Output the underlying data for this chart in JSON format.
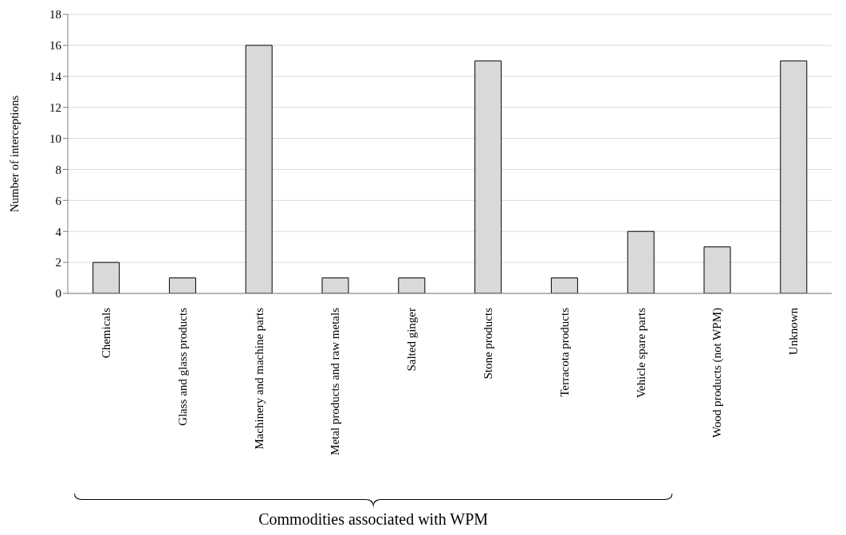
{
  "chart_data": {
    "type": "bar",
    "ylabel": "Number of interceptions",
    "categories": [
      "Chemicals",
      "Glass and glass products",
      "Machinery and machine parts",
      "Metal products and raw metals",
      "Salted ginger",
      "Stone products",
      "Terracota products",
      "Vehicle spare parts",
      "Wood products (not WPM)",
      "Unknown"
    ],
    "values": [
      2,
      1,
      16,
      1,
      1,
      15,
      1,
      4,
      3,
      15
    ],
    "color": "#d9d9d9",
    "ylim": [
      0,
      18
    ],
    "yticks": [
      0,
      2,
      4,
      6,
      8,
      10,
      12,
      14,
      16,
      18
    ],
    "grid": "y",
    "annotations": [
      "Commodities associated with WPM"
    ]
  }
}
